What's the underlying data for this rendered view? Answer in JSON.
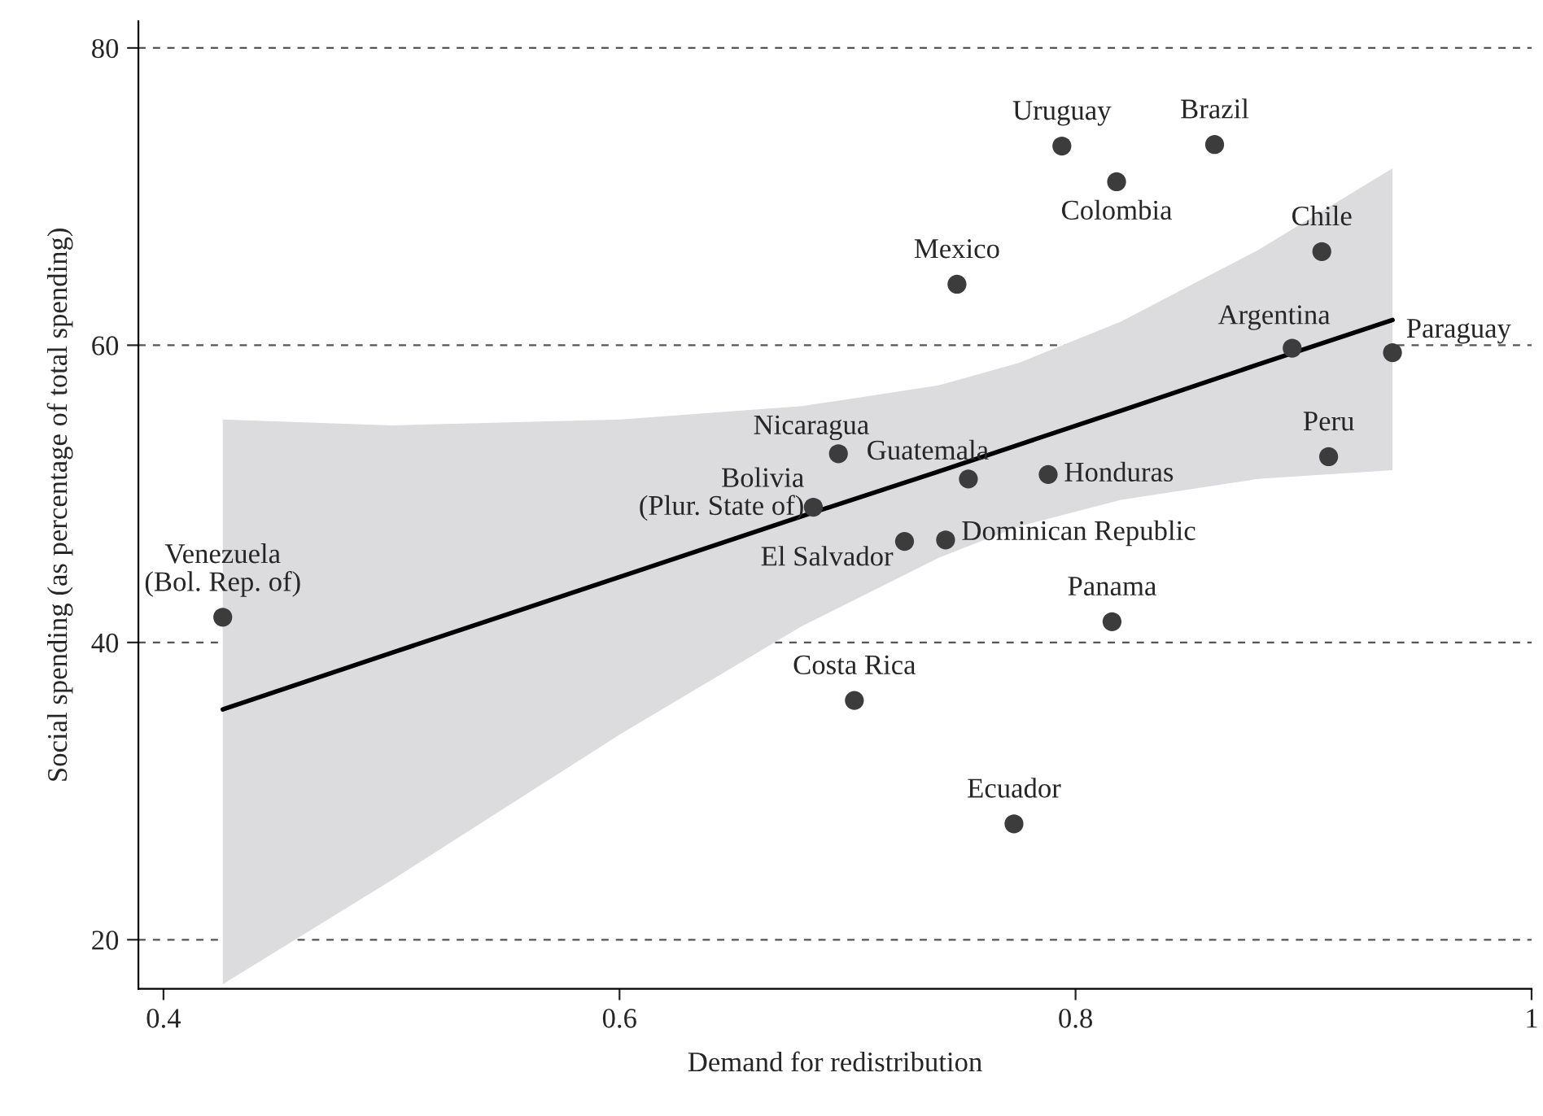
{
  "chart_data": {
    "type": "scatter",
    "xlabel": "Demand for redistribution",
    "ylabel": "Social spending (as percentage of total spending)",
    "xlim": [
      0.389,
      1.0
    ],
    "xticks": [
      0.4,
      0.6,
      0.8,
      1
    ],
    "ylim": [
      16.7,
      81.8
    ],
    "yticks": [
      20,
      40,
      60,
      80
    ],
    "grid": "y",
    "legend": false,
    "series": [
      {
        "marker": "circle",
        "color": "#3c3c3c",
        "x": [
          0.794,
          0.861,
          0.818,
          0.908,
          0.748,
          0.895,
          0.939,
          0.696,
          0.753,
          0.788,
          0.911,
          0.743,
          0.725,
          0.685,
          0.426,
          0.816,
          0.703,
          0.773
        ],
        "values": [
          73.4,
          73.5,
          71.0,
          66.3,
          64.1,
          59.8,
          59.5,
          52.7,
          51.0,
          51.3,
          52.5,
          46.9,
          46.8,
          49.1,
          41.7,
          41.4,
          36.1,
          27.8
        ]
      },
      {
        "type": "line",
        "color": "#000000",
        "line_style": "solid",
        "x": [
          0.426,
          0.5,
          0.6,
          0.68,
          0.74,
          0.775,
          0.82,
          0.88,
          0.939
        ],
        "values": [
          35.5,
          39.3,
          44.4,
          48.5,
          51.5,
          53.3,
          55.6,
          58.7,
          61.7
        ],
        "lower": [
          17.0,
          24.0,
          33.8,
          41.1,
          45.7,
          47.8,
          49.6,
          51.0,
          51.6
        ],
        "upper": [
          55.0,
          54.6,
          55.0,
          55.9,
          57.3,
          58.8,
          61.6,
          66.4,
          71.9
        ]
      }
    ],
    "annotations": [
      {
        "text": "Uruguay",
        "x": 0.794,
        "y": 73.4
      },
      {
        "text": "Brazil",
        "x": 0.861,
        "y": 73.5
      },
      {
        "text": "Colombia",
        "x": 0.818,
        "y": 71.0
      },
      {
        "text": "Chile",
        "x": 0.908,
        "y": 66.3
      },
      {
        "text": "Mexico",
        "x": 0.748,
        "y": 64.1
      },
      {
        "text": "Argentina",
        "x": 0.895,
        "y": 59.8
      },
      {
        "text": "Paraguay",
        "x": 0.939,
        "y": 59.5
      },
      {
        "text": "Nicaragua",
        "x": 0.696,
        "y": 52.7
      },
      {
        "text": "Guatemala",
        "x": 0.753,
        "y": 51.0
      },
      {
        "text": "Honduras",
        "x": 0.788,
        "y": 51.3
      },
      {
        "text": "Peru",
        "x": 0.911,
        "y": 52.5
      },
      {
        "text": "Dominican Republic",
        "x": 0.743,
        "y": 46.9
      },
      {
        "text": "El Salvador",
        "x": 0.725,
        "y": 46.8
      },
      {
        "text": "Bolivia\n(Plur. State of)",
        "x": 0.685,
        "y": 49.1
      },
      {
        "text": "Venezuela\n(Bol. Rep. of)",
        "x": 0.426,
        "y": 41.7
      },
      {
        "text": "Panama",
        "x": 0.816,
        "y": 41.4
      },
      {
        "text": "Costa Rica",
        "x": 0.703,
        "y": 36.1
      },
      {
        "text": "Ecuador",
        "x": 0.773,
        "y": 27.8
      }
    ]
  }
}
